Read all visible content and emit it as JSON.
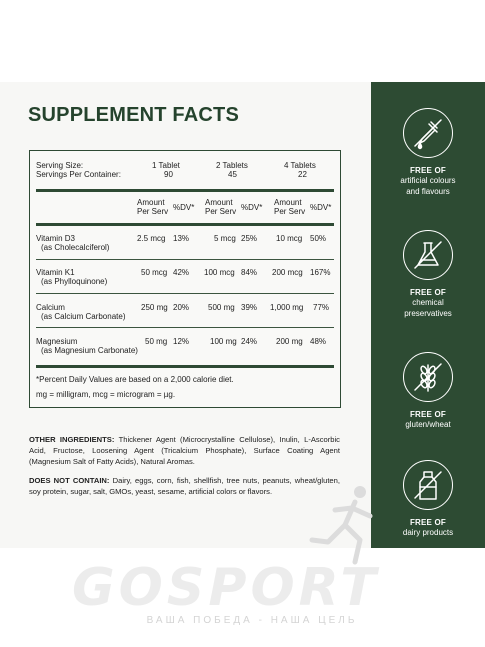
{
  "title": "SUPPLEMENT FACTS",
  "serving": {
    "size_label": "Serving Size:",
    "per_container_label": "Servings Per Container:",
    "columns": [
      {
        "size": "1 Tablet",
        "per_container": "90"
      },
      {
        "size": "2 Tablets",
        "per_container": "45"
      },
      {
        "size": "4 Tablets",
        "per_container": "22"
      }
    ]
  },
  "headers": {
    "amount": "Amount",
    "per_serv": "Per Serv",
    "dv": "%DV*"
  },
  "nutrients": [
    {
      "name": "Vitamin D3",
      "sub": "(as Cholecalciferol)",
      "values": [
        [
          "2.5 mcg",
          "13%"
        ],
        [
          "5 mcg",
          "25%"
        ],
        [
          "10 mcg",
          "50%"
        ]
      ]
    },
    {
      "name": "Vitamin K1",
      "sub": "(as Phylloquinone)",
      "values": [
        [
          "50 mcg",
          "42%"
        ],
        [
          "100 mcg",
          "84%"
        ],
        [
          "200 mcg",
          "167%"
        ]
      ]
    },
    {
      "name": "Calcium",
      "sub": "(as Calcium Carbonate)",
      "values": [
        [
          "250 mg",
          "20%"
        ],
        [
          "500 mg",
          "39%"
        ],
        [
          "1,000 mg",
          "77%"
        ]
      ]
    },
    {
      "name": "Magnesium",
      "sub": "(as Magnesium Carbonate)",
      "values": [
        [
          "50 mg",
          "12%"
        ],
        [
          "100 mg",
          "24%"
        ],
        [
          "200 mg",
          "48%"
        ]
      ]
    }
  ],
  "footnotes": {
    "dv": "*Percent Daily Values are based on a 2,000 calorie diet.",
    "units": "mg = milligram, mcg = microgram = µg."
  },
  "ingredients": {
    "other_label": "OTHER INGREDIENTS:",
    "other_text": "Thickener Agent (Microcrystalline Cellulose), Inulin, L-Ascorbic Acid, Fructose, Loosening Agent (Tricalcium Phosphate), Surface Coating Agent (Magnesium Salt of Fatty Acids), Natural Aromas.",
    "not_label": "DOES NOT CONTAIN:",
    "not_text": "Dairy, eggs, corn, fish, shellfish, tree nuts, peanuts, wheat/gluten, soy protein, sugar, salt, GMOs, yeast, sesame, artificial colors or flavors."
  },
  "badges": [
    {
      "icon": "dropper-crossed-icon",
      "heading": "FREE OF",
      "lines": [
        "artificial colours",
        "and flavours"
      ]
    },
    {
      "icon": "flask-crossed-icon",
      "heading": "FREE OF",
      "lines": [
        "chemical",
        "preservatives"
      ]
    },
    {
      "icon": "wheat-crossed-icon",
      "heading": "FREE OF",
      "lines": [
        "gluten/wheat"
      ]
    },
    {
      "icon": "milk-bottle-crossed-icon",
      "heading": "FREE OF",
      "lines": [
        "dairy products"
      ]
    }
  ],
  "watermark": {
    "brand": "GOSPORT",
    "slogan": "ВАША ПОБЕДА - НАША ЦЕЛЬ"
  },
  "colors": {
    "brand_green": "#2d4b33",
    "title_green": "#25432d"
  }
}
